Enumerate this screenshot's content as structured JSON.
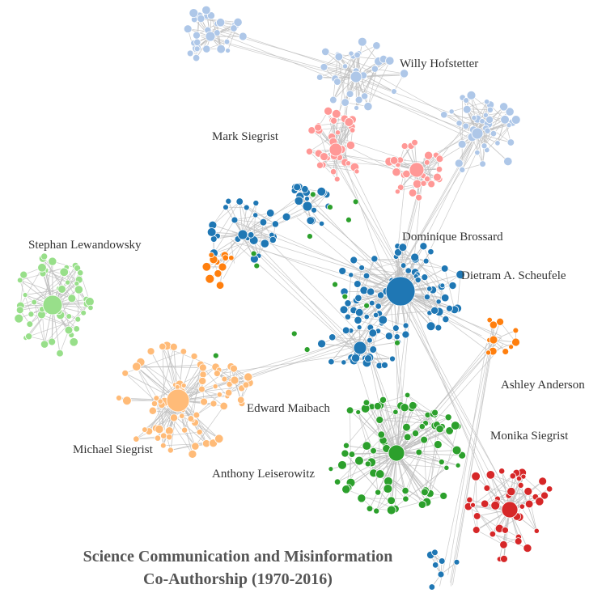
{
  "title": {
    "line1": "Science Communication and Misinformation",
    "line2": "Co-Authorship (1970-2016)"
  },
  "authors": [
    {
      "key": "willy",
      "name": "Willy Hofstetter"
    },
    {
      "key": "mark",
      "name": "Mark Siegrist"
    },
    {
      "key": "stephan",
      "name": "Stephan Lewandowsky"
    },
    {
      "key": "dominique",
      "name": "Dominique Brossard"
    },
    {
      "key": "dietram",
      "name": "Dietram A. Scheufele"
    },
    {
      "key": "ashley",
      "name": "Ashley Anderson"
    },
    {
      "key": "edward",
      "name": "Edward Maibach"
    },
    {
      "key": "michael",
      "name": "Michael Siegrist"
    },
    {
      "key": "anthony",
      "name": "Anthony Leiserowitz"
    },
    {
      "key": "monika",
      "name": "Monika Siegrist"
    }
  ],
  "colors": {
    "lightblue": "#aec7e8",
    "pink": "#ff9896",
    "blue": "#1f77b4",
    "green": "#2ca02c",
    "orange": "#ff7f0e",
    "lightgreen": "#98df8a",
    "peach": "#ffbb78",
    "red": "#d62728",
    "edge": "#bdbdbd"
  }
}
